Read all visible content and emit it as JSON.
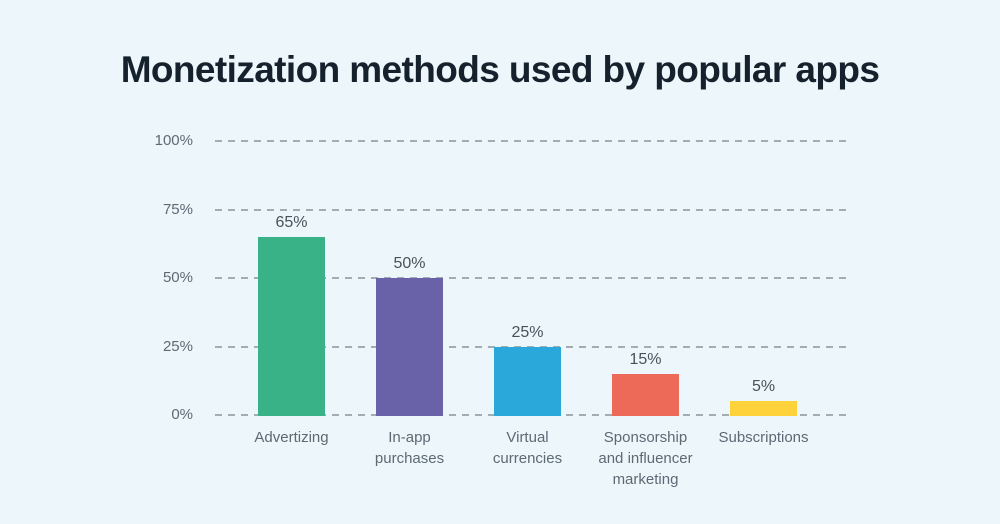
{
  "page": {
    "background_color": "#edf6fa",
    "title": "Monetization methods used by popular apps",
    "title_color": "#15222e"
  },
  "chart_data": {
    "type": "bar",
    "title": "Monetization methods used by popular apps",
    "categories": [
      "Advertizing",
      "In-app purchases",
      "Virtual currencies",
      "Sponsorship and influencer marketing",
      "Subscriptions"
    ],
    "category_label_lines": [
      [
        "Advertizing"
      ],
      [
        "In-app",
        "purchases"
      ],
      [
        "Virtual",
        "currencies"
      ],
      [
        "Sponsorship",
        "and influencer",
        "marketing"
      ],
      [
        "Subscriptions"
      ]
    ],
    "values": [
      65,
      50,
      25,
      15,
      5
    ],
    "value_labels": [
      "65%",
      "50%",
      "25%",
      "15%",
      "5%"
    ],
    "bar_colors": [
      "#38b286",
      "#6962a9",
      "#29a8d9",
      "#ec6a57",
      "#fdd23a"
    ],
    "xlabel": "",
    "ylabel": "",
    "ylim": [
      0,
      100
    ],
    "yticks": [
      0,
      25,
      50,
      75,
      100
    ],
    "ytick_labels": [
      "0%",
      "25%",
      "50%",
      "75%",
      "100%"
    ],
    "grid": "horizontal dashed",
    "gridline_color": "#a3abb3",
    "axis_label_color": "#5d6974",
    "value_label_color": "#49525c",
    "legend": "none"
  }
}
